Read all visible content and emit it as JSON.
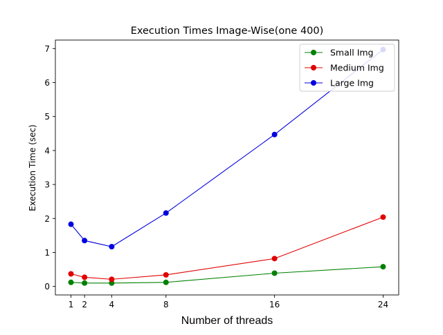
{
  "chart_data": {
    "type": "line",
    "title": "Execution Times Image-Wise(one 400)",
    "xlabel": "Number of threads",
    "ylabel": "Execution Time (sec)",
    "x": [
      1,
      2,
      4,
      8,
      16,
      24
    ],
    "x_ticks": [
      "1",
      "2",
      "4",
      "8",
      "16",
      "24"
    ],
    "y_ticks": [
      "0",
      "1",
      "2",
      "3",
      "4",
      "5",
      "6",
      "7"
    ],
    "xlim": [
      -0.15,
      25.15
    ],
    "ylim": [
      -0.25,
      7.25
    ],
    "grid": false,
    "legend_position": "top-right",
    "series": [
      {
        "name": "Small Img",
        "color": "#008000",
        "values": [
          0.12,
          0.1,
          0.1,
          0.12,
          0.39,
          0.58
        ]
      },
      {
        "name": "Medium Img",
        "color": "#e00000",
        "values": [
          0.37,
          0.27,
          0.21,
          0.34,
          0.82,
          2.04
        ]
      },
      {
        "name": "Large Img",
        "color": "#0000e0",
        "values": [
          1.83,
          1.35,
          1.17,
          2.16,
          4.47,
          6.97
        ]
      }
    ]
  }
}
